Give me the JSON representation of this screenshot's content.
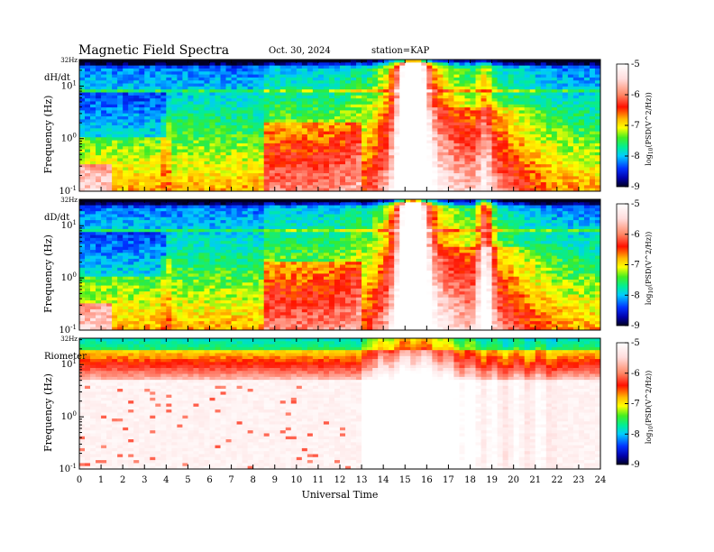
{
  "header": {
    "title": "Magnetic Field Spectra",
    "date": "Oct. 30, 2024",
    "station": "station=KAP"
  },
  "colors": {
    "background": "#ffffff",
    "axis": "#000000",
    "colormap": [
      "#000033",
      "#0000cc",
      "#0088ff",
      "#00eeee",
      "#00ee44",
      "#ffff00",
      "#ff2200",
      "#ffdddd",
      "#ffffff"
    ]
  },
  "chart_data": [
    {
      "type": "heatmap",
      "panel_label": "dH/dt",
      "ylabel": "Frequency (Hz)",
      "y_scale": "log",
      "ylim_hz": [
        0.1,
        32
      ],
      "y_ticks": [
        {
          "label_base": "10",
          "label_exp": "-1",
          "value": 0.1
        },
        {
          "label_base": "10",
          "label_exp": "0",
          "value": 1
        },
        {
          "label_base": "10",
          "label_exp": "1",
          "value": 10
        }
      ],
      "y_top_label": "32Hz",
      "xlim": [
        0,
        24
      ],
      "colorbar": {
        "ticks": [
          "-5",
          "-6",
          "-7",
          "-8",
          "-9"
        ],
        "range": [
          -9,
          -5
        ],
        "label": "log10(PSD(V^2/Hz))"
      }
    },
    {
      "type": "heatmap",
      "panel_label": "dD/dt",
      "ylabel": "Frequency (Hz)",
      "y_scale": "log",
      "ylim_hz": [
        0.1,
        32
      ],
      "y_ticks": [
        {
          "label_base": "10",
          "label_exp": "-1",
          "value": 0.1
        },
        {
          "label_base": "10",
          "label_exp": "0",
          "value": 1
        },
        {
          "label_base": "10",
          "label_exp": "1",
          "value": 10
        }
      ],
      "y_top_label": "32Hz",
      "xlim": [
        0,
        24
      ],
      "colorbar": {
        "ticks": [
          "-5",
          "-6",
          "-7",
          "-8",
          "-9"
        ],
        "range": [
          -9,
          -5
        ],
        "label": "log10(PSD(V^2/Hz))"
      }
    },
    {
      "type": "heatmap",
      "panel_label": "Riometer",
      "ylabel": "Frequency (Hz)",
      "y_scale": "log",
      "ylim_hz": [
        0.1,
        32
      ],
      "y_ticks": [
        {
          "label_base": "10",
          "label_exp": "-1",
          "value": 0.1
        },
        {
          "label_base": "10",
          "label_exp": "0",
          "value": 1
        },
        {
          "label_base": "10",
          "label_exp": "1",
          "value": 10
        }
      ],
      "y_top_label": "32Hz",
      "xlim": [
        0,
        24
      ],
      "x_ticks": [
        "0",
        "1",
        "2",
        "3",
        "4",
        "5",
        "6",
        "7",
        "8",
        "9",
        "10",
        "11",
        "12",
        "13",
        "14",
        "15",
        "16",
        "17",
        "18",
        "19",
        "20",
        "21",
        "22",
        "23",
        "24"
      ],
      "xlabel": "Universal Time",
      "colorbar": {
        "ticks": [
          "-5",
          "-6",
          "-7",
          "-8",
          "-9"
        ],
        "range": [
          -9,
          -5
        ],
        "label": "log10(PSD(V^2/Hz))"
      }
    }
  ]
}
